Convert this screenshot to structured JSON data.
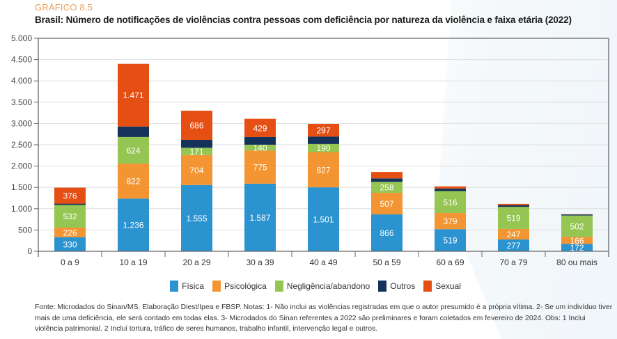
{
  "header": {
    "kicker": "GRÁFICO 8.5",
    "title": "Brasil: Número de notificações de violências contra pessoas com deficiência por natureza da violência e faixa etária (2022)"
  },
  "colors": {
    "Física": "#2a93d0",
    "Psicológica": "#f39532",
    "Negligência/abandono": "#95c552",
    "Outros": "#14325a",
    "Sexual": "#e64f14",
    "kicker": "#e8a15f",
    "grid": "#dedede",
    "axis": "#666666"
  },
  "chart_data": {
    "type": "bar",
    "stacked": true,
    "title": "Brasil: Número de notificações de violências contra pessoas com deficiência por natureza da violência e faixa etária (2022)",
    "xlabel": "",
    "ylabel": "",
    "ylim": [
      0,
      5000
    ],
    "yticks": [
      0,
      500,
      1000,
      1500,
      2000,
      2500,
      3000,
      3500,
      4000,
      4500,
      5000
    ],
    "ytick_labels": [
      "0",
      "500",
      "1.000",
      "1.500",
      "2.000",
      "2.500",
      "3.000",
      "3.500",
      "4.000",
      "4.500",
      "5.000"
    ],
    "grid": true,
    "legend_position": "bottom",
    "categories": [
      "0 a 9",
      "10 a 19",
      "20 a 29",
      "30 a 39",
      "40 a 49",
      "50 a 59",
      "60 a 69",
      "70 a 79",
      "80 ou mais"
    ],
    "series": [
      {
        "name": "Física",
        "values": [
          330,
          1236,
          1555,
          1587,
          1501,
          866,
          519,
          277,
          172
        ],
        "labels": [
          "330",
          "1.236",
          "1.555",
          "1.587",
          "1.501",
          "866",
          "519",
          "277",
          "172"
        ]
      },
      {
        "name": "Psicológica",
        "values": [
          226,
          822,
          704,
          775,
          827,
          507,
          379,
          247,
          166
        ],
        "labels": [
          "226",
          "822",
          "704",
          "775",
          "827",
          "507",
          "379",
          "247",
          "166"
        ]
      },
      {
        "name": "Negligência/abandono",
        "values": [
          532,
          624,
          171,
          140,
          190,
          258,
          516,
          519,
          502
        ],
        "labels": [
          "532",
          "624",
          "171",
          "140",
          "190",
          "258",
          "516",
          "519",
          "502"
        ]
      },
      {
        "name": "Outros",
        "values": [
          30,
          247,
          184,
          179,
          175,
          80,
          60,
          40,
          25
        ],
        "labels": [
          "",
          "",
          "",
          "",
          "",
          "",
          "",
          "",
          ""
        ]
      },
      {
        "name": "Sexual",
        "values": [
          376,
          1471,
          686,
          429,
          297,
          150,
          50,
          30,
          5
        ],
        "labels": [
          "376",
          "1.471",
          "686",
          "429",
          "297",
          "",
          "",
          "",
          ""
        ]
      }
    ]
  },
  "legend": {
    "items": [
      "Física",
      "Psicológica",
      "Negligência/abandono",
      "Outros",
      "Sexual"
    ]
  },
  "footer": {
    "text": "Fonte: Microdados do Sinan/MS. Elaboração Diest/Ipea e FBSP. Notas: 1- Não inclui as violências registradas em que o autor presumido é a própria vítima. 2- Se um indivíduo tiver mais de uma deficiência, ele será contado em todas elas. 3- Microdados do Sinan referentes a 2022 são preliminares e foram coletados em fevereiro de 2024. Obs: 1 Inclui violência patrimonial. 2 Inclui tortura, tráfico de seres humanos, trabalho infantil, intervenção legal e outros."
  }
}
